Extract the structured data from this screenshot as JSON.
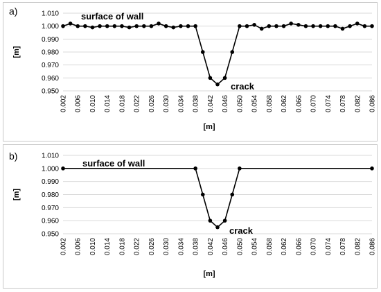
{
  "chart_data": [
    {
      "type": "line",
      "panel_label": "a)",
      "xlabel": "[m]",
      "ylabel": "[m]",
      "ylim": [
        0.95,
        1.01
      ],
      "yticks": [
        "0.950",
        "0.960",
        "0.970",
        "0.980",
        "0.990",
        "1.000",
        "1.010"
      ],
      "xticks": [
        "0.002",
        "0.006",
        "0.010",
        "0.014",
        "0.018",
        "0.022",
        "0.026",
        "0.030",
        "0.034",
        "0.038",
        "0.042",
        "0.046",
        "0.050",
        "0.054",
        "0.058",
        "0.062",
        "0.066",
        "0.070",
        "0.074",
        "0.078",
        "0.082",
        "0.086"
      ],
      "grid": "horizontal",
      "annotations": [
        "surface of wall",
        "crack"
      ],
      "series": [
        {
          "x": [
            0.002,
            0.004,
            0.006,
            0.008,
            0.01,
            0.012,
            0.014,
            0.016,
            0.018,
            0.02,
            0.022,
            0.024,
            0.026,
            0.028,
            0.03,
            0.032,
            0.034,
            0.036,
            0.038,
            0.04,
            0.042,
            0.044,
            0.046,
            0.048,
            0.05,
            0.052,
            0.054,
            0.056,
            0.058,
            0.06,
            0.062,
            0.064,
            0.066,
            0.068,
            0.07,
            0.072,
            0.074,
            0.076,
            0.078,
            0.08,
            0.082,
            0.084,
            0.086
          ],
          "y": [
            1.0,
            1.002,
            1.0,
            1.0,
            0.999,
            1.0,
            1.0,
            1.0,
            1.0,
            0.999,
            1.0,
            1.0,
            1.0,
            1.002,
            1.0,
            0.999,
            1.0,
            1.0,
            1.0,
            0.98,
            0.96,
            0.955,
            0.96,
            0.98,
            1.0,
            1.0,
            1.001,
            0.998,
            1.0,
            1.0,
            1.0,
            1.002,
            1.001,
            1.0,
            1.0,
            1.0,
            1.0,
            1.0,
            0.998,
            1.0,
            1.002,
            1.0,
            1.0
          ]
        }
      ]
    },
    {
      "type": "line",
      "panel_label": "b)",
      "xlabel": "[m]",
      "ylabel": "[m]",
      "ylim": [
        0.95,
        1.01
      ],
      "yticks": [
        "0.950",
        "0.960",
        "0.970",
        "0.980",
        "0.990",
        "1.000",
        "1.010"
      ],
      "xticks": [
        "0.002",
        "0.006",
        "0.010",
        "0.014",
        "0.018",
        "0.022",
        "0.026",
        "0.030",
        "0.034",
        "0.038",
        "0.042",
        "0.046",
        "0.050",
        "0.054",
        "0.058",
        "0.062",
        "0.066",
        "0.070",
        "0.074",
        "0.078",
        "0.082",
        "0.086"
      ],
      "grid": "horizontal",
      "annotations": [
        "surface of wall",
        "crack"
      ],
      "series": [
        {
          "x": [
            0.002,
            0.038,
            0.04,
            0.042,
            0.044,
            0.046,
            0.048,
            0.05,
            0.086
          ],
          "y": [
            1.0,
            1.0,
            0.98,
            0.96,
            0.955,
            0.96,
            0.98,
            1.0,
            1.0
          ]
        }
      ]
    }
  ]
}
